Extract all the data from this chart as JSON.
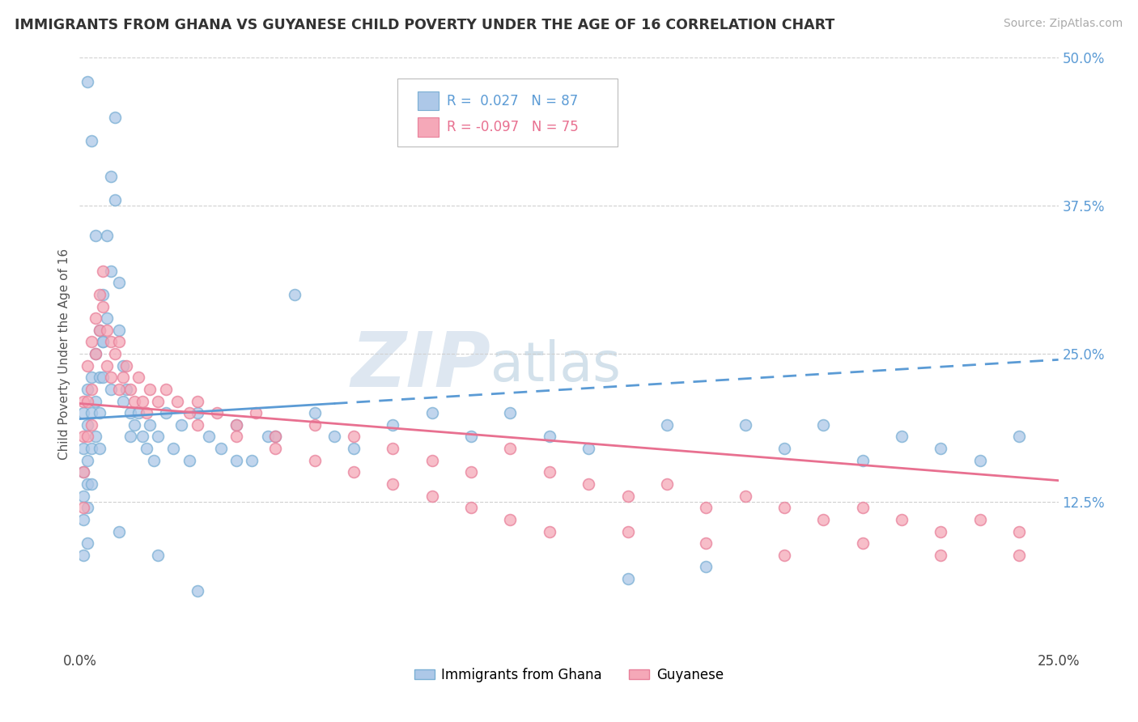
{
  "title": "IMMIGRANTS FROM GHANA VS GUYANESE CHILD POVERTY UNDER THE AGE OF 16 CORRELATION CHART",
  "source": "Source: ZipAtlas.com",
  "ylabel": "Child Poverty Under the Age of 16",
  "xlim": [
    0.0,
    0.25
  ],
  "ylim": [
    0.0,
    0.5
  ],
  "xtick_vals": [
    0.0,
    0.25
  ],
  "xtick_labels": [
    "0.0%",
    "25.0%"
  ],
  "ytick_vals": [
    0.125,
    0.25,
    0.375,
    0.5
  ],
  "ytick_labels": [
    "12.5%",
    "25.0%",
    "37.5%",
    "50.0%"
  ],
  "legend1_r": " 0.027",
  "legend1_n": "87",
  "legend2_r": "-0.097",
  "legend2_n": "75",
  "color_ghana": "#adc8e8",
  "color_guyanese": "#f5a8b8",
  "edge_ghana": "#7aafd4",
  "edge_guyanese": "#e8809a",
  "trendline_ghana_color": "#5b9bd5",
  "trendline_guyanese_color": "#e87090",
  "ghana_trend": [
    0.195,
    0.245
  ],
  "guyanese_trend": [
    0.208,
    0.143
  ],
  "ghana_x": [
    0.001,
    0.001,
    0.001,
    0.001,
    0.001,
    0.002,
    0.002,
    0.002,
    0.002,
    0.002,
    0.002,
    0.003,
    0.003,
    0.003,
    0.003,
    0.004,
    0.004,
    0.004,
    0.005,
    0.005,
    0.005,
    0.005,
    0.006,
    0.006,
    0.006,
    0.007,
    0.007,
    0.008,
    0.008,
    0.009,
    0.009,
    0.01,
    0.01,
    0.011,
    0.011,
    0.012,
    0.013,
    0.013,
    0.014,
    0.015,
    0.016,
    0.017,
    0.018,
    0.019,
    0.02,
    0.022,
    0.024,
    0.026,
    0.028,
    0.03,
    0.033,
    0.036,
    0.04,
    0.044,
    0.048,
    0.055,
    0.06,
    0.065,
    0.07,
    0.08,
    0.09,
    0.1,
    0.11,
    0.12,
    0.13,
    0.14,
    0.15,
    0.16,
    0.17,
    0.18,
    0.19,
    0.2,
    0.21,
    0.22,
    0.23,
    0.24,
    0.05,
    0.04,
    0.03,
    0.02,
    0.01,
    0.008,
    0.006,
    0.004,
    0.003,
    0.002,
    0.001
  ],
  "ghana_y": [
    0.2,
    0.17,
    0.15,
    0.13,
    0.11,
    0.22,
    0.19,
    0.16,
    0.14,
    0.12,
    0.09,
    0.23,
    0.2,
    0.17,
    0.14,
    0.25,
    0.21,
    0.18,
    0.27,
    0.23,
    0.2,
    0.17,
    0.3,
    0.26,
    0.23,
    0.35,
    0.28,
    0.4,
    0.32,
    0.45,
    0.38,
    0.31,
    0.27,
    0.24,
    0.21,
    0.22,
    0.2,
    0.18,
    0.19,
    0.2,
    0.18,
    0.17,
    0.19,
    0.16,
    0.18,
    0.2,
    0.17,
    0.19,
    0.16,
    0.2,
    0.18,
    0.17,
    0.19,
    0.16,
    0.18,
    0.3,
    0.2,
    0.18,
    0.17,
    0.19,
    0.2,
    0.18,
    0.2,
    0.18,
    0.17,
    0.06,
    0.19,
    0.07,
    0.19,
    0.17,
    0.19,
    0.16,
    0.18,
    0.17,
    0.16,
    0.18,
    0.18,
    0.16,
    0.05,
    0.08,
    0.1,
    0.22,
    0.26,
    0.35,
    0.43,
    0.48,
    0.08
  ],
  "guyanese_x": [
    0.001,
    0.001,
    0.001,
    0.001,
    0.002,
    0.002,
    0.002,
    0.003,
    0.003,
    0.003,
    0.004,
    0.004,
    0.005,
    0.005,
    0.006,
    0.006,
    0.007,
    0.007,
    0.008,
    0.008,
    0.009,
    0.01,
    0.01,
    0.011,
    0.012,
    0.013,
    0.014,
    0.015,
    0.016,
    0.017,
    0.018,
    0.02,
    0.022,
    0.025,
    0.028,
    0.03,
    0.035,
    0.04,
    0.045,
    0.05,
    0.06,
    0.07,
    0.08,
    0.09,
    0.1,
    0.11,
    0.12,
    0.13,
    0.14,
    0.15,
    0.16,
    0.17,
    0.18,
    0.19,
    0.2,
    0.21,
    0.22,
    0.23,
    0.24,
    0.03,
    0.04,
    0.05,
    0.06,
    0.07,
    0.08,
    0.09,
    0.1,
    0.11,
    0.12,
    0.14,
    0.16,
    0.18,
    0.2,
    0.22,
    0.24
  ],
  "guyanese_y": [
    0.21,
    0.18,
    0.15,
    0.12,
    0.24,
    0.21,
    0.18,
    0.26,
    0.22,
    0.19,
    0.28,
    0.25,
    0.3,
    0.27,
    0.32,
    0.29,
    0.27,
    0.24,
    0.26,
    0.23,
    0.25,
    0.22,
    0.26,
    0.23,
    0.24,
    0.22,
    0.21,
    0.23,
    0.21,
    0.2,
    0.22,
    0.21,
    0.22,
    0.21,
    0.2,
    0.21,
    0.2,
    0.19,
    0.2,
    0.18,
    0.19,
    0.18,
    0.17,
    0.16,
    0.15,
    0.17,
    0.15,
    0.14,
    0.13,
    0.14,
    0.12,
    0.13,
    0.12,
    0.11,
    0.12,
    0.11,
    0.1,
    0.11,
    0.1,
    0.19,
    0.18,
    0.17,
    0.16,
    0.15,
    0.14,
    0.13,
    0.12,
    0.11,
    0.1,
    0.1,
    0.09,
    0.08,
    0.09,
    0.08,
    0.08
  ]
}
